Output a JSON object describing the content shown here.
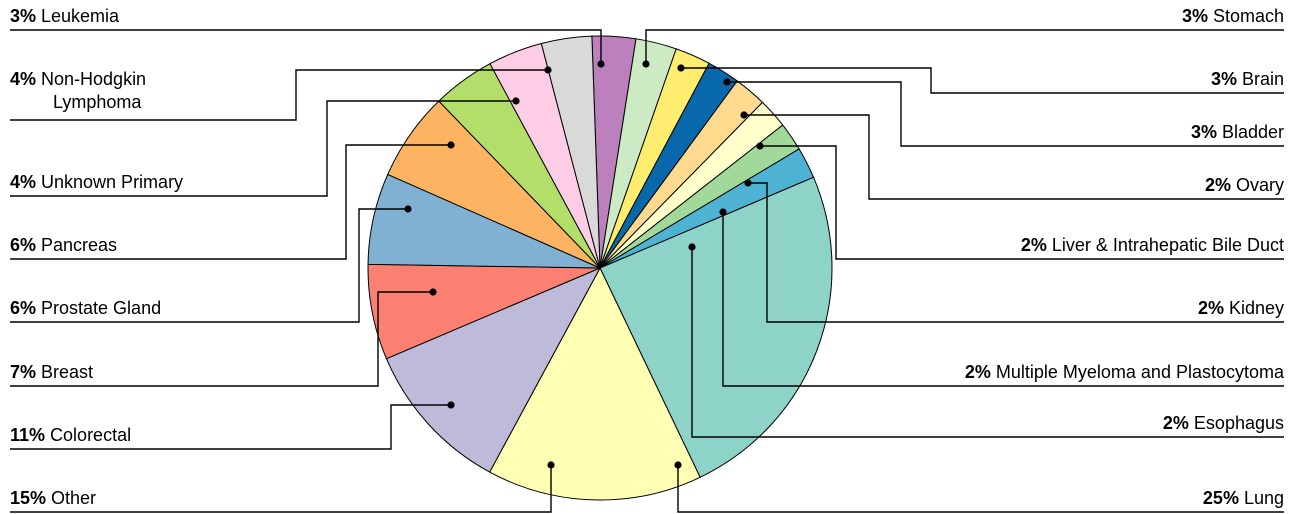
{
  "chart_data": {
    "type": "pie",
    "title": "",
    "slices": [
      {
        "pct_label": "25%",
        "name": "Lung",
        "value": 25,
        "color": "#8dd3c7"
      },
      {
        "pct_label": "15%",
        "name": "Other",
        "value": 15,
        "color": "#ffffb3"
      },
      {
        "pct_label": "11%",
        "name": "Colorectal",
        "value": 11,
        "color": "#bebada"
      },
      {
        "pct_label": "7%",
        "name": "Breast",
        "value": 7,
        "color": "#fb8072"
      },
      {
        "pct_label": "6%",
        "name": "Prostate Gland",
        "value": 6,
        "color": "#80b1d3"
      },
      {
        "pct_label": "6%",
        "name": "Pancreas",
        "value": 6,
        "color": "#fdb462"
      },
      {
        "pct_label": "4%",
        "name": "Unknown Primary",
        "value": 4,
        "color": "#b3de69"
      },
      {
        "pct_label": "4%",
        "name": "Non-Hodgkin Lymphoma",
        "value": 4,
        "color": "#fccde5"
      },
      {
        "pct_label": "3%",
        "name": "Leukemia",
        "value": 3,
        "color": "#d9d9d9"
      },
      {
        "pct_label": "3%",
        "name": "Stomach",
        "value": 3,
        "color": "#bc80bd"
      },
      {
        "pct_label": "3%",
        "name": "Brain",
        "value": 3,
        "color": "#ccebc5"
      },
      {
        "pct_label": "3%",
        "name": "Bladder",
        "value": 3,
        "color": "#ffed6f"
      },
      {
        "pct_label": "2%",
        "name": "Ovary",
        "value": 2,
        "color": "#0868ac"
      },
      {
        "pct_label": "2%",
        "name": "Liver & Intrahepatic Bile Duct",
        "value": 2,
        "color": "#fed98e"
      },
      {
        "pct_label": "2%",
        "name": "Kidney",
        "value": 2,
        "color": "#ffffcc"
      },
      {
        "pct_label": "2%",
        "name": "Multiple Myeloma and Plastocytoma",
        "value": 2,
        "color": "#a1d99b"
      },
      {
        "pct_label": "2%",
        "name": "Esophagus",
        "value": 2,
        "color": "#4eb3d3"
      }
    ],
    "legend": "leader-line labels on both sides"
  }
}
